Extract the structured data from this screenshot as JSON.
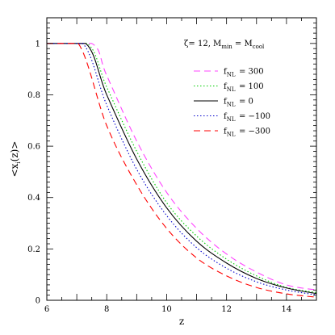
{
  "chart_data": {
    "type": "line",
    "xlabel": "z",
    "ylabel": "<x_i(z)>",
    "ylabel_main": "<x",
    "ylabel_sub": "i",
    "ylabel_tail": "(z)>",
    "xlim": [
      6,
      15
    ],
    "ylim": [
      0,
      1.1
    ],
    "xticks": [
      6,
      8,
      10,
      12,
      14
    ],
    "yticks": [
      0,
      0.2,
      0.4,
      0.6,
      0.8,
      1
    ],
    "xtick_labels": [
      "6",
      "8",
      "10",
      "12",
      "14"
    ],
    "ytick_labels": [
      "0",
      "0.2",
      "0.4",
      "0.6",
      "0.8",
      "1"
    ],
    "grid": false,
    "legend_position": "top-right",
    "annotation": {
      "zeta": "ζ= 12, M",
      "min_sub": "min",
      "eq": " = M",
      "cool_sub": "cool"
    },
    "series": [
      {
        "name": "f_NL = 300",
        "label_main": "f",
        "label_sub": "NL",
        "label_value": "= 300",
        "color": "#ff44ff",
        "dash": "8,5",
        "x": [
          6.0,
          7.5,
          8.0,
          9.0,
          10.0,
          11.0,
          12.0,
          13.0,
          14.0,
          15.0
        ],
        "y": [
          1.0,
          1.0,
          0.875,
          0.62,
          0.42,
          0.28,
          0.18,
          0.11,
          0.06,
          0.04
        ]
      },
      {
        "name": "f_NL = 100",
        "label_main": "f",
        "label_sub": "NL",
        "label_value": "= 100",
        "color": "#00cc00",
        "dash": "1.5,2.5",
        "x": [
          6.0,
          7.35,
          8.0,
          9.0,
          10.0,
          11.0,
          12.0,
          13.0,
          14.0,
          15.0
        ],
        "y": [
          1.0,
          1.0,
          0.83,
          0.58,
          0.38,
          0.25,
          0.16,
          0.095,
          0.05,
          0.03
        ]
      },
      {
        "name": "f_NL = 0",
        "label_main": "f",
        "label_sub": "NL",
        "label_value": "=    0",
        "color": "#000000",
        "dash": "",
        "x": [
          6.0,
          7.3,
          8.0,
          9.0,
          10.0,
          11.0,
          12.0,
          13.0,
          14.0,
          15.0
        ],
        "y": [
          1.0,
          1.0,
          0.8,
          0.55,
          0.36,
          0.23,
          0.145,
          0.085,
          0.048,
          0.026
        ]
      },
      {
        "name": "f_NL = -100",
        "label_main": "f",
        "label_sub": "NL",
        "label_value": "= −100",
        "color": "#0000cc",
        "dash": "1.5,2.5",
        "x": [
          6.0,
          7.2,
          8.0,
          9.0,
          10.0,
          11.0,
          12.0,
          13.0,
          14.0,
          15.0
        ],
        "y": [
          1.0,
          1.0,
          0.76,
          0.51,
          0.33,
          0.205,
          0.125,
          0.072,
          0.04,
          0.021
        ]
      },
      {
        "name": "f_NL = -300",
        "label_main": "f",
        "label_sub": "NL",
        "label_value": "= −300",
        "color": "#ff0000",
        "dash": "8,5",
        "x": [
          6.0,
          7.05,
          8.0,
          9.0,
          10.0,
          11.0,
          12.0,
          13.0,
          14.0,
          15.0
        ],
        "y": [
          1.0,
          1.0,
          0.68,
          0.45,
          0.28,
          0.165,
          0.095,
          0.05,
          0.025,
          0.012
        ]
      }
    ]
  }
}
